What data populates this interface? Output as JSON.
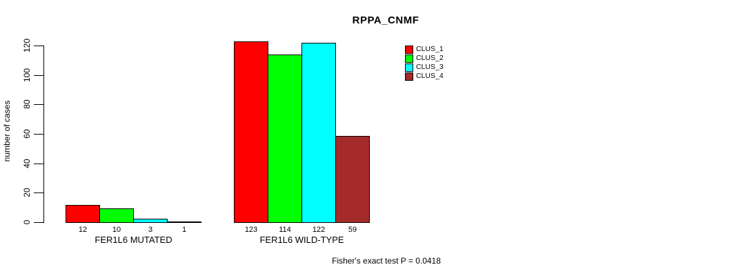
{
  "chart_data": {
    "type": "bar",
    "title": "RPPA_CNMF",
    "ylabel": "number of cases",
    "xlabel": "",
    "categories": [
      "FER1L6 MUTATED",
      "FER1L6 WILD-TYPE"
    ],
    "series": [
      {
        "name": "CLUS_1",
        "color": "#FF0000",
        "values": [
          12,
          123
        ]
      },
      {
        "name": "CLUS_2",
        "color": "#00FF00",
        "values": [
          10,
          114
        ]
      },
      {
        "name": "CLUS_3",
        "color": "#00FFFF",
        "values": [
          3,
          122
        ]
      },
      {
        "name": "CLUS_4",
        "color": "#A52A2A",
        "values": [
          1,
          59
        ]
      }
    ],
    "ylim": [
      0,
      120
    ],
    "yticks": [
      0,
      20,
      40,
      60,
      80,
      100,
      120
    ],
    "grid": false,
    "legend_position": "top-right",
    "bar_value_labels": [
      [
        "12",
        "10",
        "3",
        "1"
      ],
      [
        "123",
        "114",
        "122",
        "59"
      ]
    ],
    "annotation": "Fisher's exact test P = 0.0418"
  }
}
